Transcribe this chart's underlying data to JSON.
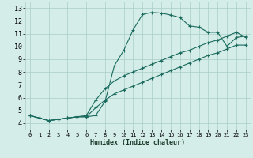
{
  "xlabel": "Humidex (Indice chaleur)",
  "bg_color": "#d4ede8",
  "grid_color": "#aaccc6",
  "line_color": "#1a6b5e",
  "xlim": [
    -0.5,
    23.5
  ],
  "ylim": [
    3.5,
    13.5
  ],
  "xticks": [
    0,
    1,
    2,
    3,
    4,
    5,
    6,
    7,
    8,
    9,
    10,
    11,
    12,
    13,
    14,
    15,
    16,
    17,
    18,
    19,
    20,
    21,
    22,
    23
  ],
  "yticks": [
    4,
    5,
    6,
    7,
    8,
    9,
    10,
    11,
    12,
    13
  ],
  "curve1_x": [
    0,
    1,
    2,
    3,
    4,
    5,
    6,
    7,
    8,
    9,
    10,
    11,
    12,
    13,
    14,
    15,
    16,
    17,
    18,
    19,
    20,
    21,
    22,
    23
  ],
  "curve1_y": [
    4.6,
    4.4,
    4.2,
    4.3,
    4.4,
    4.5,
    4.5,
    4.6,
    5.7,
    8.5,
    9.7,
    11.3,
    12.5,
    12.65,
    12.6,
    12.45,
    12.25,
    11.6,
    11.5,
    11.1,
    11.1,
    10.0,
    10.7,
    10.8
  ],
  "curve2_x": [
    0,
    1,
    2,
    3,
    4,
    5,
    6,
    7,
    8,
    9,
    10,
    11,
    12,
    13,
    14,
    15,
    16,
    17,
    18,
    19,
    20,
    21,
    22,
    23
  ],
  "curve2_y": [
    4.6,
    4.4,
    4.2,
    4.3,
    4.4,
    4.5,
    4.6,
    5.8,
    6.7,
    7.3,
    7.7,
    8.0,
    8.3,
    8.6,
    8.9,
    9.2,
    9.5,
    9.7,
    10.0,
    10.3,
    10.5,
    10.8,
    11.1,
    10.7
  ],
  "curve3_x": [
    0,
    1,
    2,
    3,
    4,
    5,
    6,
    7,
    8,
    9,
    10,
    11,
    12,
    13,
    14,
    15,
    16,
    17,
    18,
    19,
    20,
    21,
    22,
    23
  ],
  "curve3_y": [
    4.6,
    4.4,
    4.2,
    4.3,
    4.4,
    4.5,
    4.5,
    5.2,
    5.8,
    6.3,
    6.6,
    6.9,
    7.2,
    7.5,
    7.8,
    8.1,
    8.4,
    8.7,
    9.0,
    9.3,
    9.5,
    9.8,
    10.1,
    10.1
  ]
}
